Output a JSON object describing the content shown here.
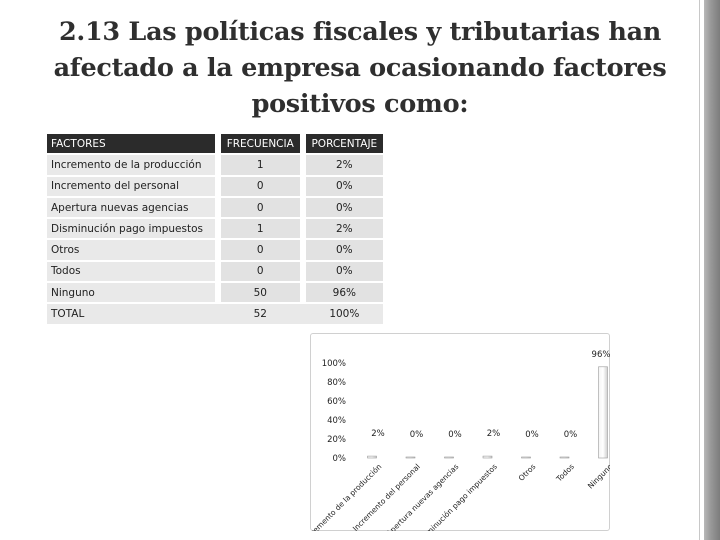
{
  "title": "2.13 Las políticas fiscales y tributarias han afectado a la empresa ocasionando factores positivos como:",
  "table": {
    "headers": [
      "FACTORES",
      "FRECUENCIA",
      "PORCENTAJE"
    ],
    "rows": [
      {
        "factor": "Incremento de la producción",
        "frecuencia": "1",
        "porcentaje": "2%"
      },
      {
        "factor": "Incremento del personal",
        "frecuencia": "0",
        "porcentaje": "0%"
      },
      {
        "factor": "Apertura nuevas agencias",
        "frecuencia": "0",
        "porcentaje": "0%"
      },
      {
        "factor": "Disminución pago impuestos",
        "frecuencia": "1",
        "porcentaje": "2%"
      },
      {
        "factor": "Otros",
        "frecuencia": "0",
        "porcentaje": "0%"
      },
      {
        "factor": "Todos",
        "frecuencia": "0",
        "porcentaje": "0%"
      },
      {
        "factor": "Ninguno",
        "frecuencia": "50",
        "porcentaje": "96%"
      },
      {
        "factor": "TOTAL",
        "frecuencia": "52",
        "porcentaje": "100%"
      }
    ]
  },
  "chart_data": {
    "type": "bar",
    "categories": [
      "Incremento de la producción",
      "Incremento del personal",
      "Apertura nuevas agencias",
      "Disminución pago impuestos",
      "Otros",
      "Todos",
      "Ninguno"
    ],
    "values": [
      2,
      0,
      0,
      2,
      0,
      0,
      96
    ],
    "data_labels": [
      "2%",
      "0%",
      "0%",
      "2%",
      "0%",
      "0%",
      "96%"
    ],
    "y_ticks": [
      "0%",
      "20%",
      "40%",
      "60%",
      "80%",
      "100%"
    ],
    "ylim": [
      0,
      100
    ],
    "title": "",
    "xlabel": "",
    "ylabel": "",
    "colors": {
      "bar_light": "#f4f4f4",
      "bar_dark": "#cfcfcf",
      "stroke": "#9a9a9a",
      "text": "#222222"
    }
  }
}
